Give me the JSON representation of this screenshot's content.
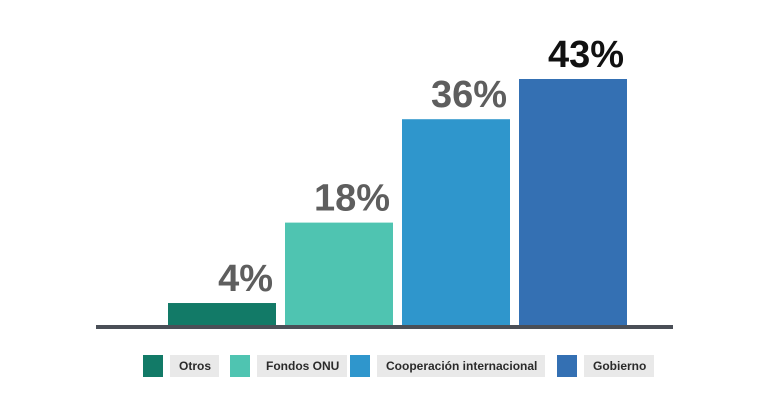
{
  "chart_data": {
    "type": "bar",
    "categories": [
      "Otros",
      "Fondos ONU",
      "Cooperación internacional",
      "Gobierno"
    ],
    "values": [
      4,
      18,
      36,
      43
    ],
    "value_labels": [
      "4%",
      "18%",
      "36%",
      "43%"
    ],
    "colors": [
      "#127a67",
      "#4fc4b1",
      "#2f96cc",
      "#3470b3"
    ],
    "label_colors": [
      "#5e5e5e",
      "#5e5e5e",
      "#5e5e5e",
      "#111111"
    ],
    "axis_color": "#4a4f57",
    "ylim": [
      0,
      45
    ],
    "grid": false,
    "legend_position": "bottom",
    "title": "",
    "xlabel": "",
    "ylabel": ""
  }
}
